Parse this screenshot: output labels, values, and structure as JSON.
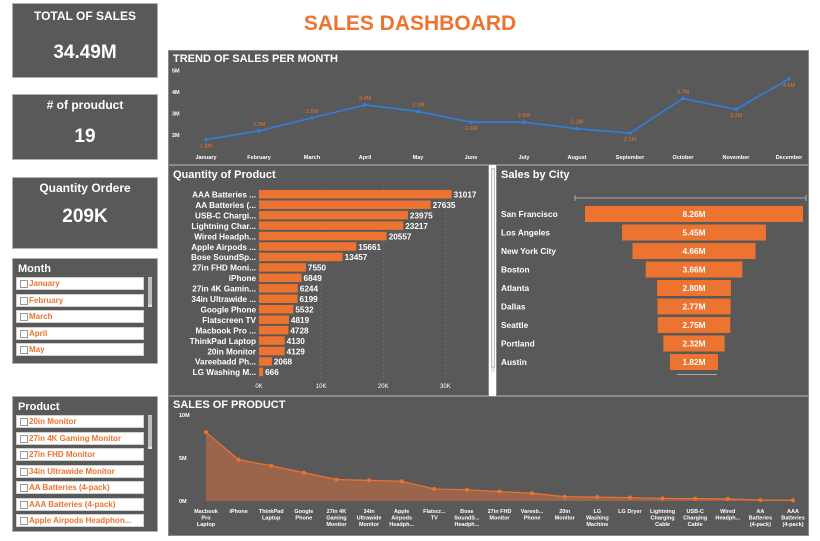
{
  "dashboard_title": "SALES DASHBOARD",
  "kpis": [
    {
      "label": "TOTAL OF SALES",
      "value": "34.49M"
    },
    {
      "label": "# of prouduct",
      "value": "19"
    },
    {
      "label": "Quantity Ordere",
      "value": "209K"
    }
  ],
  "month_slicer": {
    "title": "Month",
    "items": [
      "January",
      "February",
      "March",
      "April",
      "May"
    ]
  },
  "product_slicer": {
    "title": "Product",
    "items": [
      "20in Monitor",
      "27in 4K Gaming Monitor",
      "27in FHD Monitor",
      "34in Ultrawide Monitor",
      "AA Batteries (4-pack)",
      "AAA Batteries (4-pack)",
      "Apple Airpods Headphon..."
    ]
  },
  "colors": {
    "accent": "#ec7330",
    "panel": "#595959",
    "line": "#2f7fe0"
  },
  "chart_data": [
    {
      "id": "trend",
      "type": "line",
      "title": "TREND OF SALES PER MONTH",
      "categories": [
        "January",
        "February",
        "March",
        "April",
        "May",
        "June",
        "July",
        "August",
        "September",
        "October",
        "November",
        "December"
      ],
      "values": [
        1.8,
        2.2,
        2.8,
        3.4,
        3.1,
        2.6,
        2.6,
        2.3,
        2.1,
        3.7,
        3.2,
        4.6
      ],
      "labels": [
        "1.8M",
        "2.2M",
        "2.8M",
        "3.4M",
        "3.1M",
        "2.6M",
        "2.6M",
        "2.3M",
        "2.1M",
        "3.7M",
        "3.2M",
        "4.6M"
      ],
      "yticks": [
        "2M",
        "3M",
        "4M",
        "5M"
      ],
      "ytick_values": [
        2,
        3,
        4,
        5
      ],
      "ylim": [
        1.5,
        5.2
      ]
    },
    {
      "id": "quantity",
      "type": "bar",
      "title": "Quantity of Product",
      "categories": [
        "AAA Batteries ...",
        "AA Batteries (...",
        "USB-C Chargi...",
        "Lightning Char...",
        "Wired Headph...",
        "Apple Airpods ...",
        "Bose SoundSp...",
        "27in FHD Moni...",
        "iPhone",
        "27in 4K Gamin...",
        "34in Ultrawide ...",
        "Google Phone",
        "Flatscreen TV",
        "Macbook Pro ...",
        "ThinkPad Laptop",
        "20in Monitor",
        "Vareebadd Ph...",
        "LG Washing M..."
      ],
      "values": [
        31017,
        27635,
        23975,
        23217,
        20557,
        15661,
        13457,
        7550,
        6849,
        6244,
        6199,
        5532,
        4819,
        4728,
        4130,
        4129,
        2068,
        666
      ],
      "xticks": [
        "0K",
        "10K",
        "20K",
        "30K"
      ],
      "xtick_values": [
        0,
        10000,
        20000,
        30000
      ],
      "xlim": [
        0,
        33000
      ]
    },
    {
      "id": "city",
      "type": "bar",
      "title": "Sales by City",
      "categories": [
        "San Francisco",
        "Los Angeles",
        "New York City",
        "Boston",
        "Atlanta",
        "Dallas",
        "Seattle",
        "Portland",
        "Austin"
      ],
      "values": [
        8.26,
        5.45,
        4.66,
        3.66,
        2.8,
        2.77,
        2.75,
        2.32,
        1.82
      ],
      "labels": [
        "8.26M",
        "5.45M",
        "4.66M",
        "3.66M",
        "2.80M",
        "2.77M",
        "2.75M",
        "2.32M",
        "1.82M"
      ]
    },
    {
      "id": "product_sales",
      "type": "area",
      "title": "SALES OF PRODUCT",
      "categories": [
        "Macbook Pro Laptop",
        "iPhone",
        "ThinkPad Laptop",
        "Google Phone",
        "27in 4K Gaming Monitor",
        "34in Ultrawide Monitor",
        "Apple Airpods Headph...",
        "Flatscr... TV",
        "Bose SoundS... Headph...",
        "27in FHD Monitor",
        "Vareeb... Phone",
        "20in Monitor",
        "LG Washing Machine",
        "LG Dryer",
        "Lightning Charging Cable",
        "USB-C Charging Cable",
        "Wired Headph...",
        "AA Batteries (4-pack)",
        "AAA Batteries (4-pack)"
      ],
      "values": [
        8.0,
        4.8,
        4.1,
        3.3,
        2.5,
        2.4,
        2.3,
        1.4,
        1.3,
        1.1,
        0.9,
        0.5,
        0.45,
        0.4,
        0.3,
        0.28,
        0.25,
        0.1,
        0.09
      ],
      "yticks": [
        "0M",
        "5M",
        "10M"
      ],
      "ytick_values": [
        0,
        5,
        10
      ],
      "ylim": [
        0,
        10
      ]
    }
  ]
}
